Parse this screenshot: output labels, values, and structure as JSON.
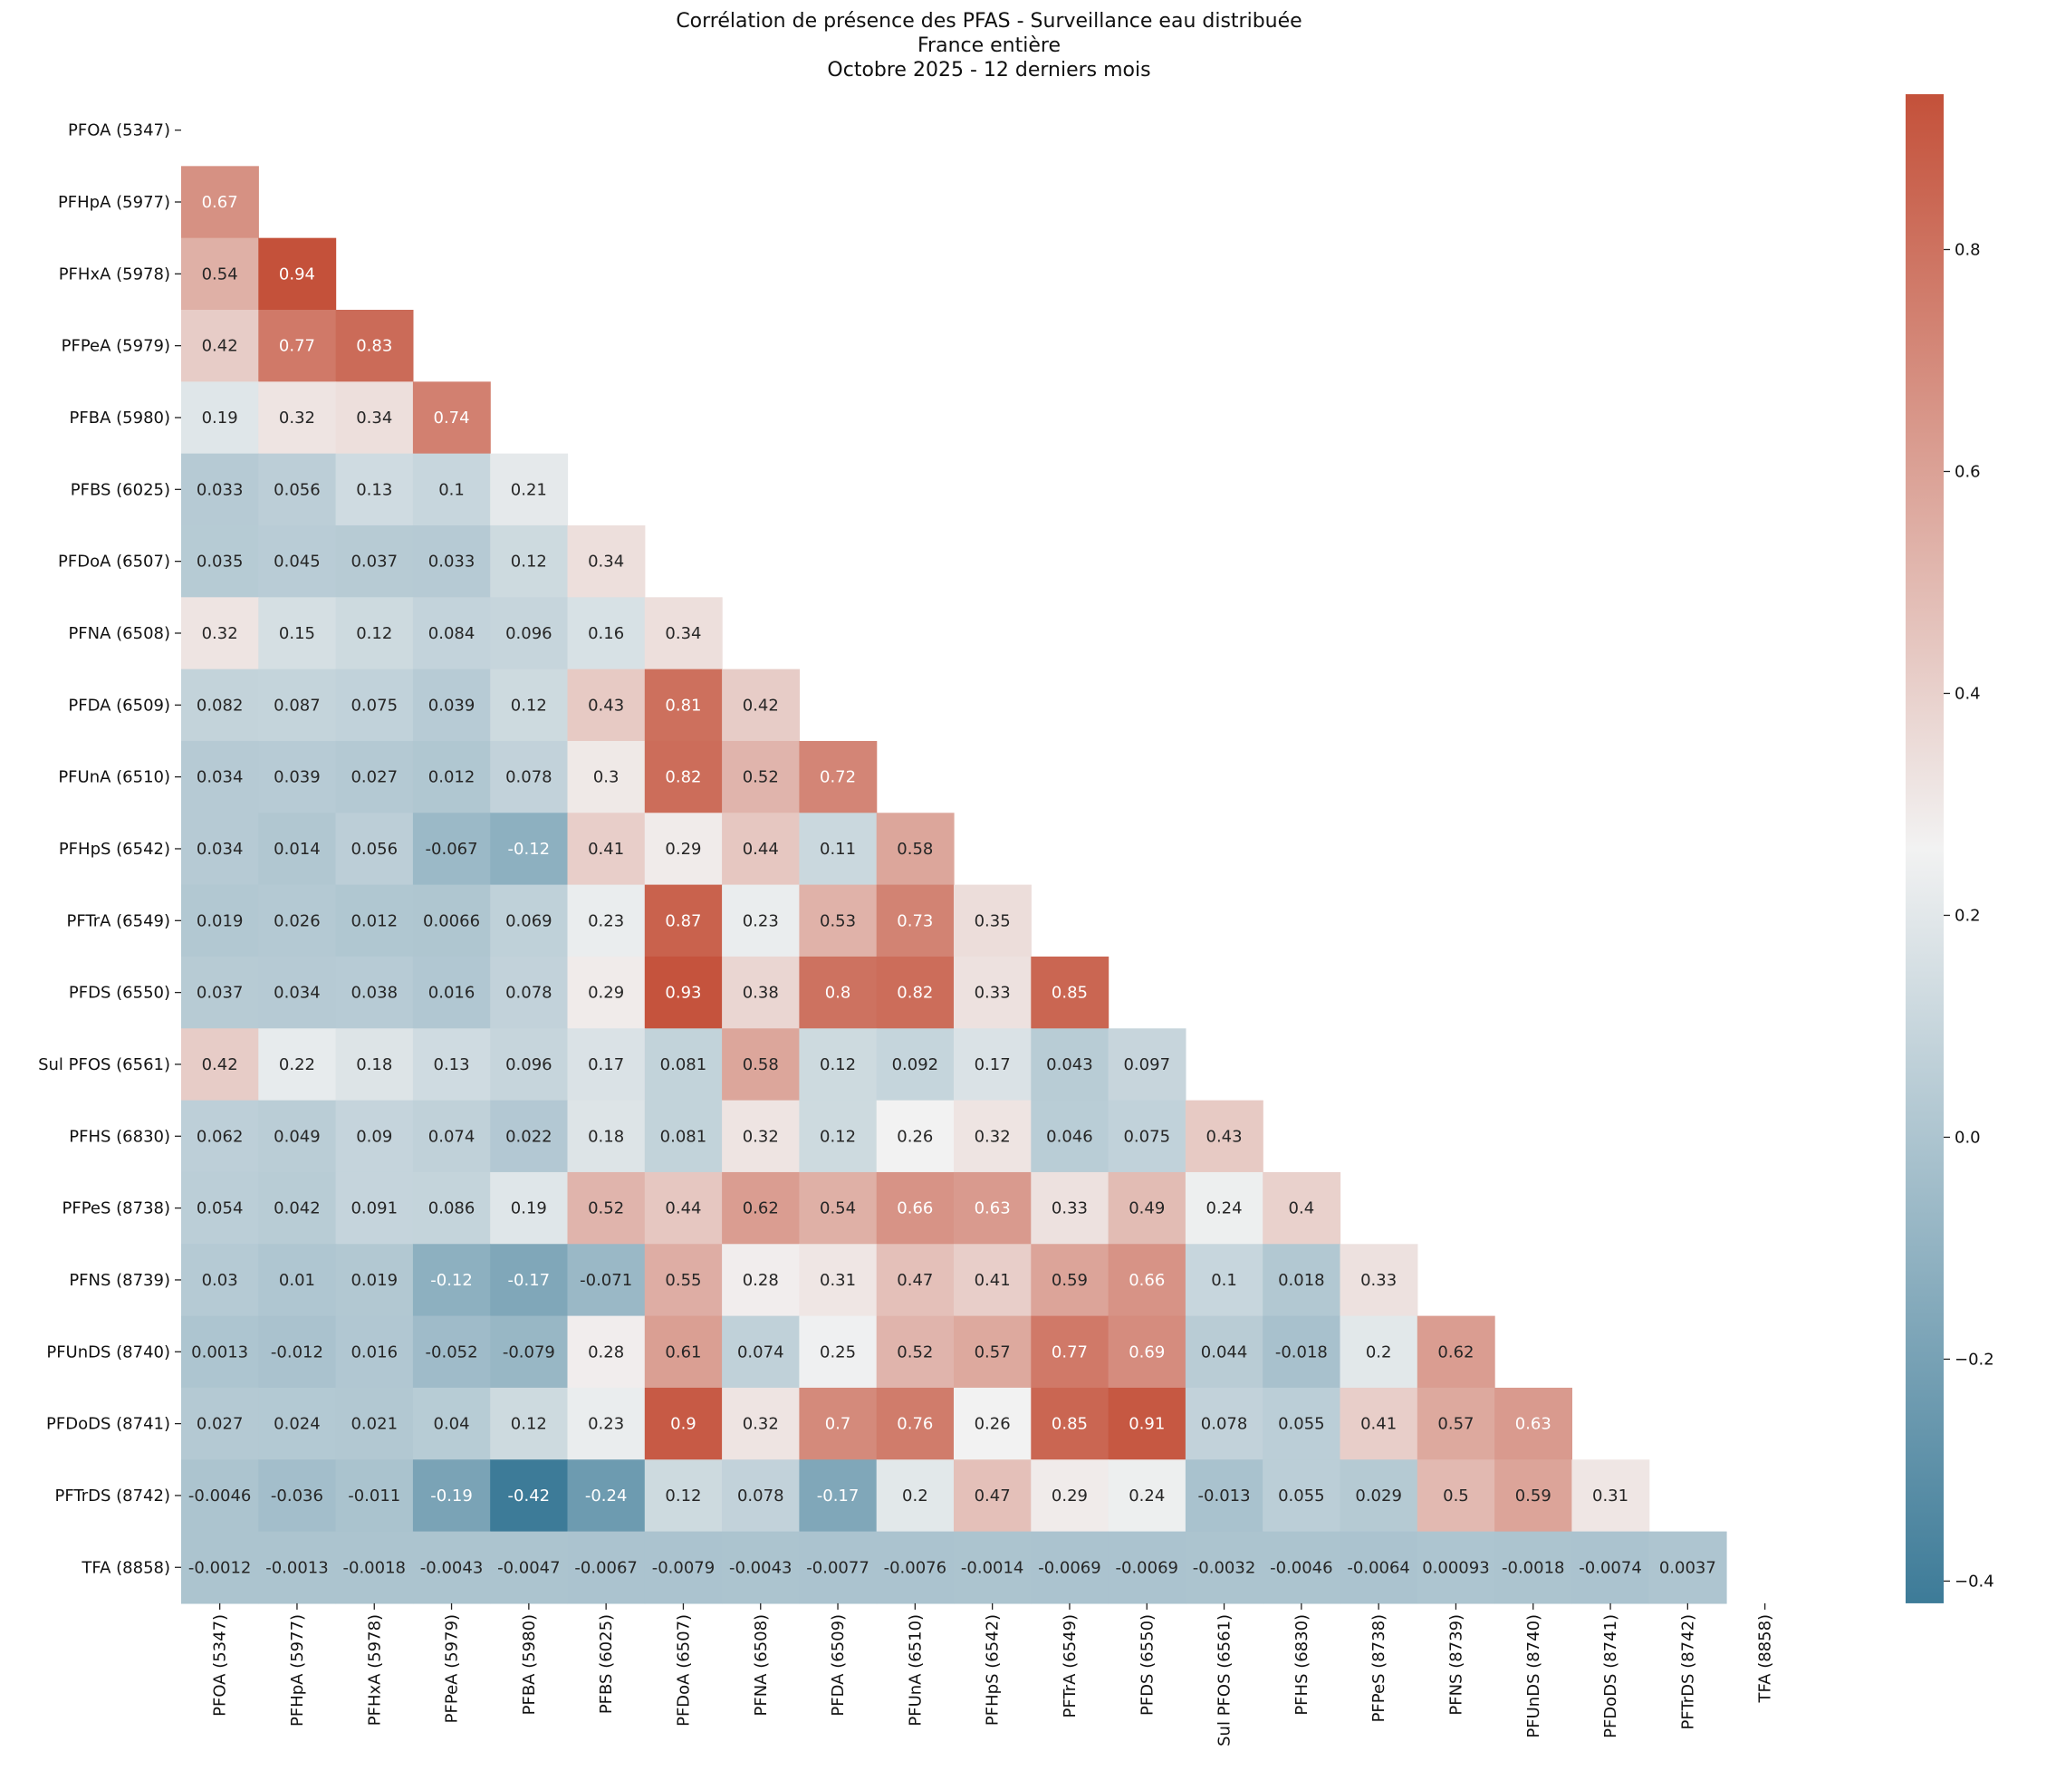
{
  "chart_data": {
    "type": "heatmap",
    "title": [
      "Corrélation de présence des PFAS - Surveillance eau distribuée",
      "France entière",
      "Octobre 2025 - 12 derniers mois"
    ],
    "labels": [
      "PFOA (5347)",
      "PFHpA (5977)",
      "PFHxA (5978)",
      "PFPeA (5979)",
      "PFBA (5980)",
      "PFBS (6025)",
      "PFDoA (6507)",
      "PFNA (6508)",
      "PFDA (6509)",
      "PFUnA (6510)",
      "PFHpS (6542)",
      "PFTrA (6549)",
      "PFDS (6550)",
      "Sul PFOS (6561)",
      "PFHS (6830)",
      "PFPeS (8738)",
      "PFNS (8739)",
      "PFUnDS (8740)",
      "PFDoDS (8741)",
      "PFTrDS (8742)",
      "TFA (8858)"
    ],
    "mask": "upper triangle including diagonal",
    "values": [
      [],
      [
        "0.67"
      ],
      [
        "0.54",
        "0.94"
      ],
      [
        "0.42",
        "0.77",
        "0.83"
      ],
      [
        "0.19",
        "0.32",
        "0.34",
        "0.74"
      ],
      [
        "0.033",
        "0.056",
        "0.13",
        "0.1",
        "0.21"
      ],
      [
        "0.035",
        "0.045",
        "0.037",
        "0.033",
        "0.12",
        "0.34"
      ],
      [
        "0.32",
        "0.15",
        "0.12",
        "0.084",
        "0.096",
        "0.16",
        "0.34"
      ],
      [
        "0.082",
        "0.087",
        "0.075",
        "0.039",
        "0.12",
        "0.43",
        "0.81",
        "0.42"
      ],
      [
        "0.034",
        "0.039",
        "0.027",
        "0.012",
        "0.078",
        "0.3",
        "0.82",
        "0.52",
        "0.72"
      ],
      [
        "0.034",
        "0.014",
        "0.056",
        "-0.067",
        "-0.12",
        "0.41",
        "0.29",
        "0.44",
        "0.11",
        "0.58"
      ],
      [
        "0.019",
        "0.026",
        "0.012",
        "0.0066",
        "0.069",
        "0.23",
        "0.87",
        "0.23",
        "0.53",
        "0.73",
        "0.35"
      ],
      [
        "0.037",
        "0.034",
        "0.038",
        "0.016",
        "0.078",
        "0.29",
        "0.93",
        "0.38",
        "0.8",
        "0.82",
        "0.33",
        "0.85"
      ],
      [
        "0.42",
        "0.22",
        "0.18",
        "0.13",
        "0.096",
        "0.17",
        "0.081",
        "0.58",
        "0.12",
        "0.092",
        "0.17",
        "0.043",
        "0.097"
      ],
      [
        "0.062",
        "0.049",
        "0.09",
        "0.074",
        "0.022",
        "0.18",
        "0.081",
        "0.32",
        "0.12",
        "0.26",
        "0.32",
        "0.046",
        "0.075",
        "0.43"
      ],
      [
        "0.054",
        "0.042",
        "0.091",
        "0.086",
        "0.19",
        "0.52",
        "0.44",
        "0.62",
        "0.54",
        "0.66",
        "0.63",
        "0.33",
        "0.49",
        "0.24",
        "0.4"
      ],
      [
        "0.03",
        "0.01",
        "0.019",
        "-0.12",
        "-0.17",
        "-0.071",
        "0.55",
        "0.28",
        "0.31",
        "0.47",
        "0.41",
        "0.59",
        "0.66",
        "0.1",
        "0.018",
        "0.33"
      ],
      [
        "0.0013",
        "-0.012",
        "0.016",
        "-0.052",
        "-0.079",
        "0.28",
        "0.61",
        "0.074",
        "0.25",
        "0.52",
        "0.57",
        "0.77",
        "0.69",
        "0.044",
        "-0.018",
        "0.2",
        "0.62"
      ],
      [
        "0.027",
        "0.024",
        "0.021",
        "0.04",
        "0.12",
        "0.23",
        "0.9",
        "0.32",
        "0.7",
        "0.76",
        "0.26",
        "0.85",
        "0.91",
        "0.078",
        "0.055",
        "0.41",
        "0.57",
        "0.63"
      ],
      [
        "-0.0046",
        "-0.036",
        "-0.011",
        "-0.19",
        "-0.42",
        "-0.24",
        "0.12",
        "0.078",
        "-0.17",
        "0.2",
        "0.47",
        "0.29",
        "0.24",
        "-0.013",
        "0.055",
        "0.029",
        "0.5",
        "0.59",
        "0.31"
      ],
      [
        "-0.0012",
        "-0.0013",
        "-0.0018",
        "-0.0043",
        "-0.0047",
        "-0.0067",
        "-0.0079",
        "-0.0043",
        "-0.0077",
        "-0.0076",
        "-0.0014",
        "-0.0069",
        "-0.0069",
        "-0.0032",
        "-0.0046",
        "-0.0064",
        "0.00093",
        "-0.0018",
        "-0.0074",
        "0.0037"
      ]
    ],
    "colorbar": {
      "vmin": -0.42,
      "vmax": 0.94,
      "ticks": [
        "−0.4",
        "−0.2",
        "0.0",
        "0.2",
        "0.4",
        "0.6",
        "0.8"
      ],
      "tick_values": [
        -0.4,
        -0.2,
        0,
        0.2,
        0.4,
        0.6,
        0.8
      ]
    },
    "colors": {
      "low": "#3d7b98",
      "mid": "#f2f2f2",
      "high": "#c4513a"
    }
  }
}
